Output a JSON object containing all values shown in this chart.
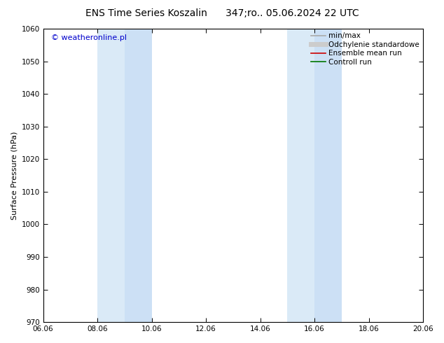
{
  "title_left": "ENS Time Series Koszalin",
  "title_right": "347;ro.. 05.06.2024 22 UTC",
  "ylabel": "Surface Pressure (hPa)",
  "ylim": [
    970,
    1060
  ],
  "yticks": [
    970,
    980,
    990,
    1000,
    1010,
    1020,
    1030,
    1040,
    1050,
    1060
  ],
  "xtick_labels": [
    "06.06",
    "08.06",
    "10.06",
    "12.06",
    "14.06",
    "16.06",
    "18.06",
    "20.06"
  ],
  "xtick_positions": [
    0,
    2,
    4,
    6,
    8,
    10,
    12,
    14
  ],
  "shaded_bands": [
    {
      "x_start": 2.0,
      "x_end": 3.0,
      "color": "#daeaf7"
    },
    {
      "x_start": 3.0,
      "x_end": 4.0,
      "color": "#cce0f5"
    },
    {
      "x_start": 9.0,
      "x_end": 10.0,
      "color": "#daeaf7"
    },
    {
      "x_start": 10.0,
      "x_end": 11.0,
      "color": "#cce0f5"
    }
  ],
  "legend_entries": [
    {
      "label": "min/max",
      "color": "#aaaaaa",
      "lw": 1.2
    },
    {
      "label": "Odchylenie standardowe",
      "color": "#cccccc",
      "lw": 5
    },
    {
      "label": "Ensemble mean run",
      "color": "#cc0000",
      "lw": 1.2
    },
    {
      "label": "Controll run",
      "color": "#007700",
      "lw": 1.2
    }
  ],
  "watermark": "© weatheronline.pl",
  "watermark_color": "#0000cc",
  "background_color": "#ffffff",
  "plot_bg_color": "#ffffff",
  "title_fontsize": 10,
  "axis_label_fontsize": 8,
  "tick_fontsize": 7.5,
  "legend_fontsize": 7.5
}
